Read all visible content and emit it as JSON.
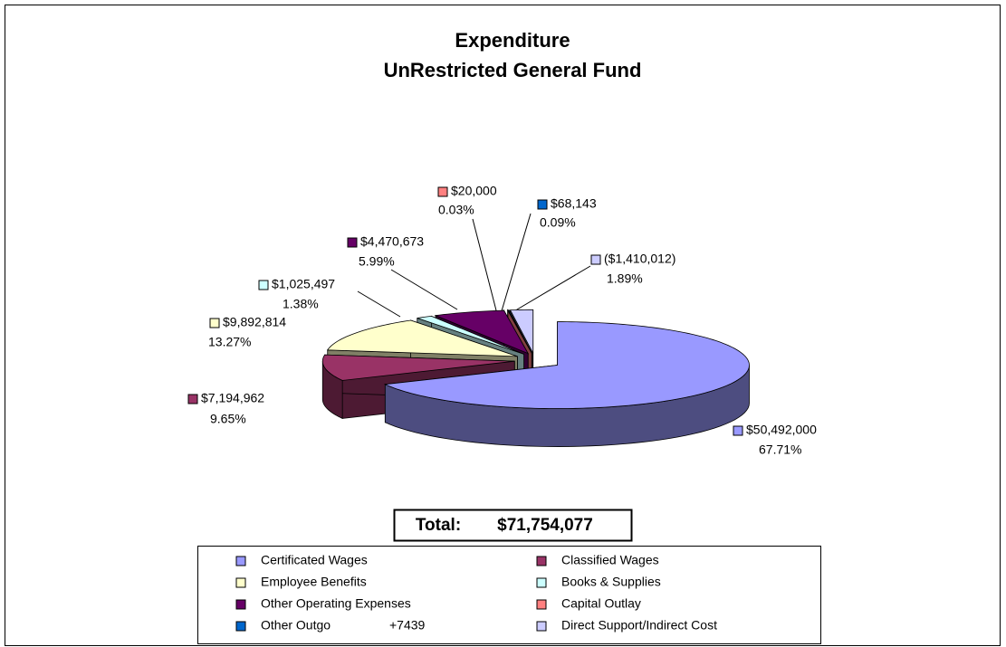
{
  "chart_data": {
    "type": "pie3d",
    "title": "Expenditure",
    "subtitle": "UnRestricted General Fund",
    "categories": [
      "Certificated Wages",
      "Classified Wages",
      "Employee Benefits",
      "Books & Supplies",
      "Other Operating Expenses",
      "Capital Outlay",
      "Other Outgo",
      "Direct Support/Indirect Cost"
    ],
    "values": [
      50492000,
      7194962,
      9892814,
      1025497,
      4470673,
      20000,
      68143,
      -1410012
    ],
    "value_labels": [
      "$50,492,000",
      "$7,194,962",
      "$9,892,814",
      "$1,025,497",
      "$4,470,673",
      "$20,000",
      "$68,143",
      "($1,410,012)"
    ],
    "percents": [
      67.71,
      9.65,
      13.27,
      1.38,
      5.99,
      0.03,
      0.09,
      1.89
    ],
    "percent_labels": [
      "67.71%",
      "9.65%",
      "13.27%",
      "1.38%",
      "5.99%",
      "0.03%",
      "0.09%",
      "1.89%"
    ],
    "colors": [
      "#9999FF",
      "#993366",
      "#FFFFCC",
      "#CCFFFF",
      "#660066",
      "#FF8080",
      "#0066CC",
      "#CCCCFF"
    ],
    "legend_note": "+7439",
    "total": {
      "label": "Total:",
      "value": 71754077,
      "value_label": "$71,754,077"
    }
  }
}
